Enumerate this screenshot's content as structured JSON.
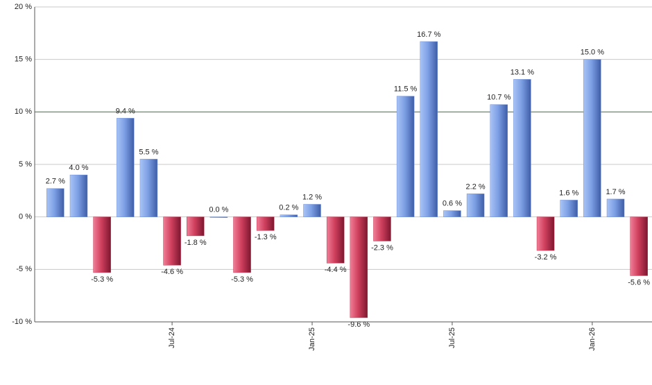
{
  "chart_data": {
    "type": "bar",
    "categories": [
      null,
      null,
      null,
      null,
      null,
      "Jul-24",
      null,
      null,
      null,
      null,
      null,
      "Jan-25",
      null,
      null,
      null,
      null,
      null,
      "Jul-25",
      null,
      null,
      null,
      null,
      null,
      "Jan-26",
      null,
      null
    ],
    "values": [
      2.7,
      4.0,
      -5.3,
      9.4,
      5.5,
      -4.6,
      -1.8,
      0.0,
      -5.3,
      -1.3,
      0.2,
      1.2,
      -4.4,
      -9.6,
      -2.3,
      11.5,
      16.7,
      0.6,
      2.2,
      10.7,
      13.1,
      -3.2,
      1.6,
      15.0,
      1.7,
      -5.6
    ],
    "value_labels": [
      "2.7 %",
      "4.0 %",
      "-5.3 %",
      "9.4 %",
      "5.5 %",
      "-4.6 %",
      "-1.8 %",
      "0.0 %",
      "-5.3 %",
      "-1.3 %",
      "0.2 %",
      "1.2 %",
      "-4.4 %",
      "-9.6 %",
      "-2.3 %",
      "11.5 %",
      "16.7 %",
      "0.6 %",
      "2.2 %",
      "10.7 %",
      "13.1 %",
      "-3.2 %",
      "1.6 %",
      "15.0 %",
      "1.7 %",
      "-5.6 %"
    ],
    "positive_color": "#6f8fd8",
    "negative_color": "#c8304e",
    "ylim": [
      -10,
      20
    ],
    "yticks": [
      {
        "value": -10,
        "label": "-10 %"
      },
      {
        "value": -5,
        "label": "-5 %"
      },
      {
        "value": 0,
        "label": "0 %"
      },
      {
        "value": 5,
        "label": "5 %"
      },
      {
        "value": 10,
        "label": "10 %"
      },
      {
        "value": 15,
        "label": "15 %"
      },
      {
        "value": 20,
        "label": "20 %"
      }
    ],
    "grid": true,
    "reference_line": {
      "value": 10,
      "color": "#2e8b2e"
    }
  }
}
